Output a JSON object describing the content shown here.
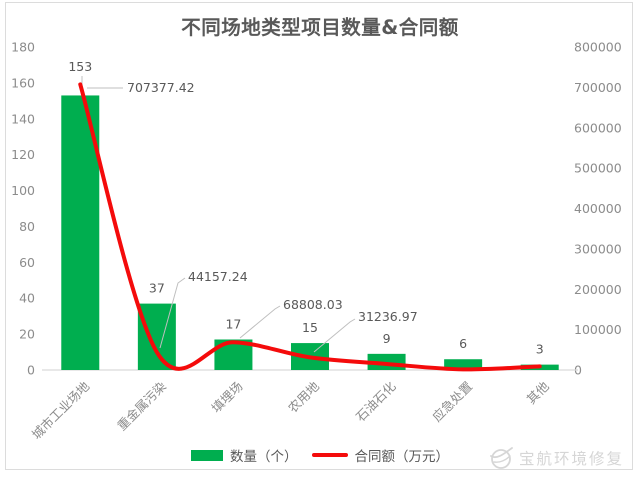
{
  "title": "不同场地类型项目数量&合同额",
  "legend": {
    "bars": "数量（个）",
    "line": "合同额（万元）"
  },
  "watermark": {
    "text": "宝航环境修复"
  },
  "colors": {
    "bar": "#00ae4f",
    "line": "#f40b0b",
    "title": "#595959",
    "tick": "#8c8c8c",
    "data_label": "#595959",
    "leader": "#bfbfbf",
    "axis": "#d9d9d9",
    "watermark": "#d6d6d6"
  },
  "chart_data": {
    "type": "bar+line combo",
    "title": "不同场地类型项目数量&合同额",
    "categories": [
      "城市工业场地",
      "重金属污染",
      "填埋场",
      "农用地",
      "石油石化",
      "应急处置",
      "其他"
    ],
    "series": [
      {
        "name": "数量（个）",
        "type": "bar",
        "axis": "left",
        "color": "#00ae4f",
        "values": [
          153,
          37,
          17,
          15,
          9,
          6,
          3
        ],
        "labels": [
          "153",
          "37",
          "17",
          "15",
          "9",
          "6",
          "3"
        ]
      },
      {
        "name": "合同额（万元）",
        "type": "line",
        "axis": "right",
        "color": "#f40b0b",
        "values": [
          707377.42,
          44157.24,
          68808.03,
          31236.97,
          15000,
          1500,
          9000
        ],
        "labels": [
          "707377.42",
          "44157.24",
          "68808.03",
          "31236.97",
          null,
          null,
          null
        ]
      }
    ],
    "left_axis": {
      "min": 0,
      "max": 180,
      "step": 20,
      "ylabel": ""
    },
    "right_axis": {
      "min": 0,
      "max": 800000,
      "step": 100000,
      "ylabel": ""
    },
    "grid": false,
    "legend_position": "bottom"
  }
}
